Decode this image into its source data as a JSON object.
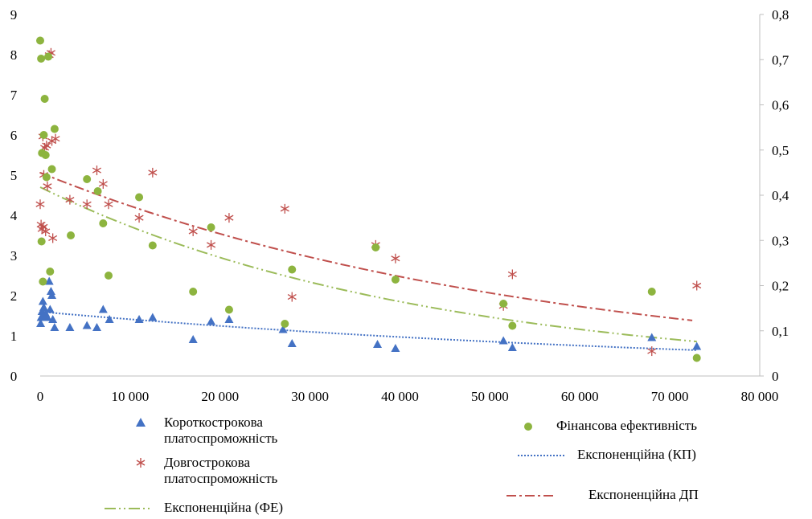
{
  "chart_data": {
    "type": "scatter",
    "title": "",
    "xlabel": "",
    "ylabel": "",
    "y2label": "",
    "xlim": [
      0,
      80000
    ],
    "ylim": [
      0,
      9
    ],
    "y2lim": [
      0,
      0.8
    ],
    "x_ticks": [
      "0",
      "10 000",
      "20 000",
      "30 000",
      "40 000",
      "50 000",
      "60 000",
      "70 000",
      "80 000"
    ],
    "y_ticks": [
      "0",
      "1",
      "2",
      "3",
      "4",
      "5",
      "6",
      "7",
      "8",
      "9"
    ],
    "y2_ticks": [
      "0",
      "0,1",
      "0,2",
      "0,3",
      "0,4",
      "0,5",
      "0,6",
      "0,7",
      "0,8"
    ],
    "grid": false,
    "legend_position": "bottom",
    "series": [
      {
        "name": "Короткострокова платоспроможність",
        "axis": "left",
        "marker": "triangle",
        "color": "#4472C4",
        "points": [
          [
            50,
            1.3
          ],
          [
            100,
            1.45
          ],
          [
            200,
            1.6
          ],
          [
            300,
            1.85
          ],
          [
            400,
            1.7
          ],
          [
            500,
            1.5
          ],
          [
            600,
            1.55
          ],
          [
            800,
            1.45
          ],
          [
            1000,
            2.35
          ],
          [
            1100,
            1.65
          ],
          [
            1200,
            2.1
          ],
          [
            1300,
            2.0
          ],
          [
            1400,
            1.4
          ],
          [
            1600,
            1.2
          ],
          [
            3300,
            1.2
          ],
          [
            5200,
            1.25
          ],
          [
            6300,
            1.2
          ],
          [
            7000,
            1.65
          ],
          [
            7700,
            1.4
          ],
          [
            11000,
            1.4
          ],
          [
            12500,
            1.45
          ],
          [
            17000,
            0.9
          ],
          [
            19000,
            1.35
          ],
          [
            21000,
            1.4
          ],
          [
            27000,
            1.15
          ],
          [
            28000,
            0.8
          ],
          [
            37500,
            0.78
          ],
          [
            39500,
            0.68
          ],
          [
            51500,
            0.87
          ],
          [
            52500,
            0.7
          ],
          [
            68000,
            0.95
          ],
          [
            73000,
            0.73
          ]
        ]
      },
      {
        "name": "Довгострокова платоспроможність",
        "axis": "right",
        "marker": "star",
        "color": "#C0504D",
        "points": [
          [
            0,
            0.38
          ],
          [
            100,
            0.335
          ],
          [
            200,
            0.325
          ],
          [
            300,
            0.53
          ],
          [
            350,
            0.33
          ],
          [
            400,
            0.445
          ],
          [
            500,
            0.505
          ],
          [
            600,
            0.32
          ],
          [
            700,
            0.51
          ],
          [
            800,
            0.42
          ],
          [
            1000,
            0.71
          ],
          [
            1200,
            0.715
          ],
          [
            1300,
            0.52
          ],
          [
            1400,
            0.305
          ],
          [
            1700,
            0.525
          ],
          [
            3300,
            0.39
          ],
          [
            5200,
            0.38
          ],
          [
            6300,
            0.455
          ],
          [
            7000,
            0.425
          ],
          [
            7600,
            0.38
          ],
          [
            11000,
            0.35
          ],
          [
            12500,
            0.45
          ],
          [
            17000,
            0.32
          ],
          [
            19000,
            0.29
          ],
          [
            21000,
            0.35
          ],
          [
            27200,
            0.37
          ],
          [
            28000,
            0.175
          ],
          [
            37300,
            0.29
          ],
          [
            39500,
            0.26
          ],
          [
            51500,
            0.155
          ],
          [
            52500,
            0.225
          ],
          [
            68000,
            0.055
          ],
          [
            73000,
            0.2
          ]
        ]
      },
      {
        "name": "Фінансова ефективність",
        "axis": "left",
        "marker": "circle",
        "color": "#8DB43F",
        "points": [
          [
            0,
            8.35
          ],
          [
            100,
            7.9
          ],
          [
            150,
            3.35
          ],
          [
            200,
            5.55
          ],
          [
            300,
            2.35
          ],
          [
            400,
            6.0
          ],
          [
            500,
            6.9
          ],
          [
            600,
            5.5
          ],
          [
            700,
            4.95
          ],
          [
            900,
            7.95
          ],
          [
            1100,
            2.6
          ],
          [
            1300,
            5.15
          ],
          [
            1600,
            6.15
          ],
          [
            3400,
            3.5
          ],
          [
            5200,
            4.9
          ],
          [
            6400,
            4.6
          ],
          [
            7000,
            3.8
          ],
          [
            7600,
            2.5
          ],
          [
            11000,
            4.45
          ],
          [
            12500,
            3.25
          ],
          [
            17000,
            2.1
          ],
          [
            19000,
            3.7
          ],
          [
            21000,
            1.65
          ],
          [
            27200,
            1.3
          ],
          [
            28000,
            2.65
          ],
          [
            37300,
            3.2
          ],
          [
            39500,
            2.4
          ],
          [
            51500,
            1.8
          ],
          [
            52500,
            1.25
          ],
          [
            68000,
            2.1
          ],
          [
            73000,
            0.45
          ]
        ]
      },
      {
        "name": "Експоненційна (КП)",
        "axis": "left",
        "line": "dotted",
        "color": "#4472C4",
        "trend": {
          "a": 1.6,
          "b": -1.25e-05,
          "x_from": 1000,
          "x_to": 73000
        }
      },
      {
        "name": "Експоненційна ДП",
        "axis": "right",
        "line": "dashdot",
        "color": "#C0504D",
        "trend": {
          "a": 0.45,
          "b": -1.79e-05,
          "x_from": 0,
          "x_to": 72500
        }
      },
      {
        "name": "Експоненційна (ФЕ)",
        "axis": "left",
        "line": "dashdotdot",
        "color": "#9BBB59",
        "trend": {
          "a": 4.7,
          "b": -2.33e-05,
          "x_from": 0,
          "x_to": 73000
        }
      }
    ]
  },
  "legend": {
    "short_solvency": "Короткострокова платоспроможність",
    "long_solvency": "Довгострокова платоспроможність",
    "trend_fe": "Експоненційна (ФЕ)",
    "fin_efficiency": "Фінансова ефективність",
    "trend_kp": "Експоненційна (КП)",
    "trend_dp": "Експоненційна ДП"
  }
}
